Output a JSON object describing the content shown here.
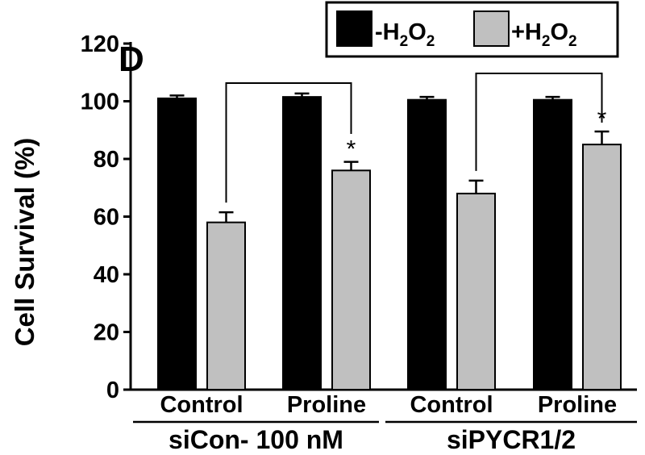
{
  "chart_data": {
    "type": "bar",
    "panel_label": "D",
    "ylabel": "Cell Survival (%)",
    "ylim": [
      0,
      120
    ],
    "yticks": [
      0,
      20,
      40,
      60,
      80,
      100,
      120
    ],
    "categories": [
      "Control",
      "Proline",
      "Control",
      "Proline"
    ],
    "groups": [
      {
        "label": "siCon- 100 nM",
        "categories": [
          0,
          1
        ]
      },
      {
        "label": "siPYCR1/2",
        "categories": [
          2,
          3
        ]
      }
    ],
    "series": [
      {
        "name_prefix": "-H",
        "name_sub1": "2",
        "name_mid": "O",
        "name_sub2": "2",
        "color": "#000000",
        "values": [
          101,
          101.5,
          100.5,
          100.5
        ],
        "errors": [
          1,
          1.2,
          1,
          1
        ]
      },
      {
        "name_prefix": "+H",
        "name_sub1": "2",
        "name_mid": "O",
        "name_sub2": "2",
        "color": "#c0c0c0",
        "values": [
          58,
          76,
          68,
          85
        ],
        "errors": [
          3.5,
          3,
          4.5,
          4.5
        ]
      }
    ],
    "annotations": [
      {
        "text": "*",
        "category": 1,
        "series": 1
      },
      {
        "text": "*",
        "category": 3,
        "series": 1
      }
    ],
    "brackets": [
      {
        "from_category": 0,
        "to_category": 1,
        "series": 1
      },
      {
        "from_category": 2,
        "to_category": 3,
        "series": 1
      }
    ],
    "legend_position": "top-right",
    "grid": false
  }
}
